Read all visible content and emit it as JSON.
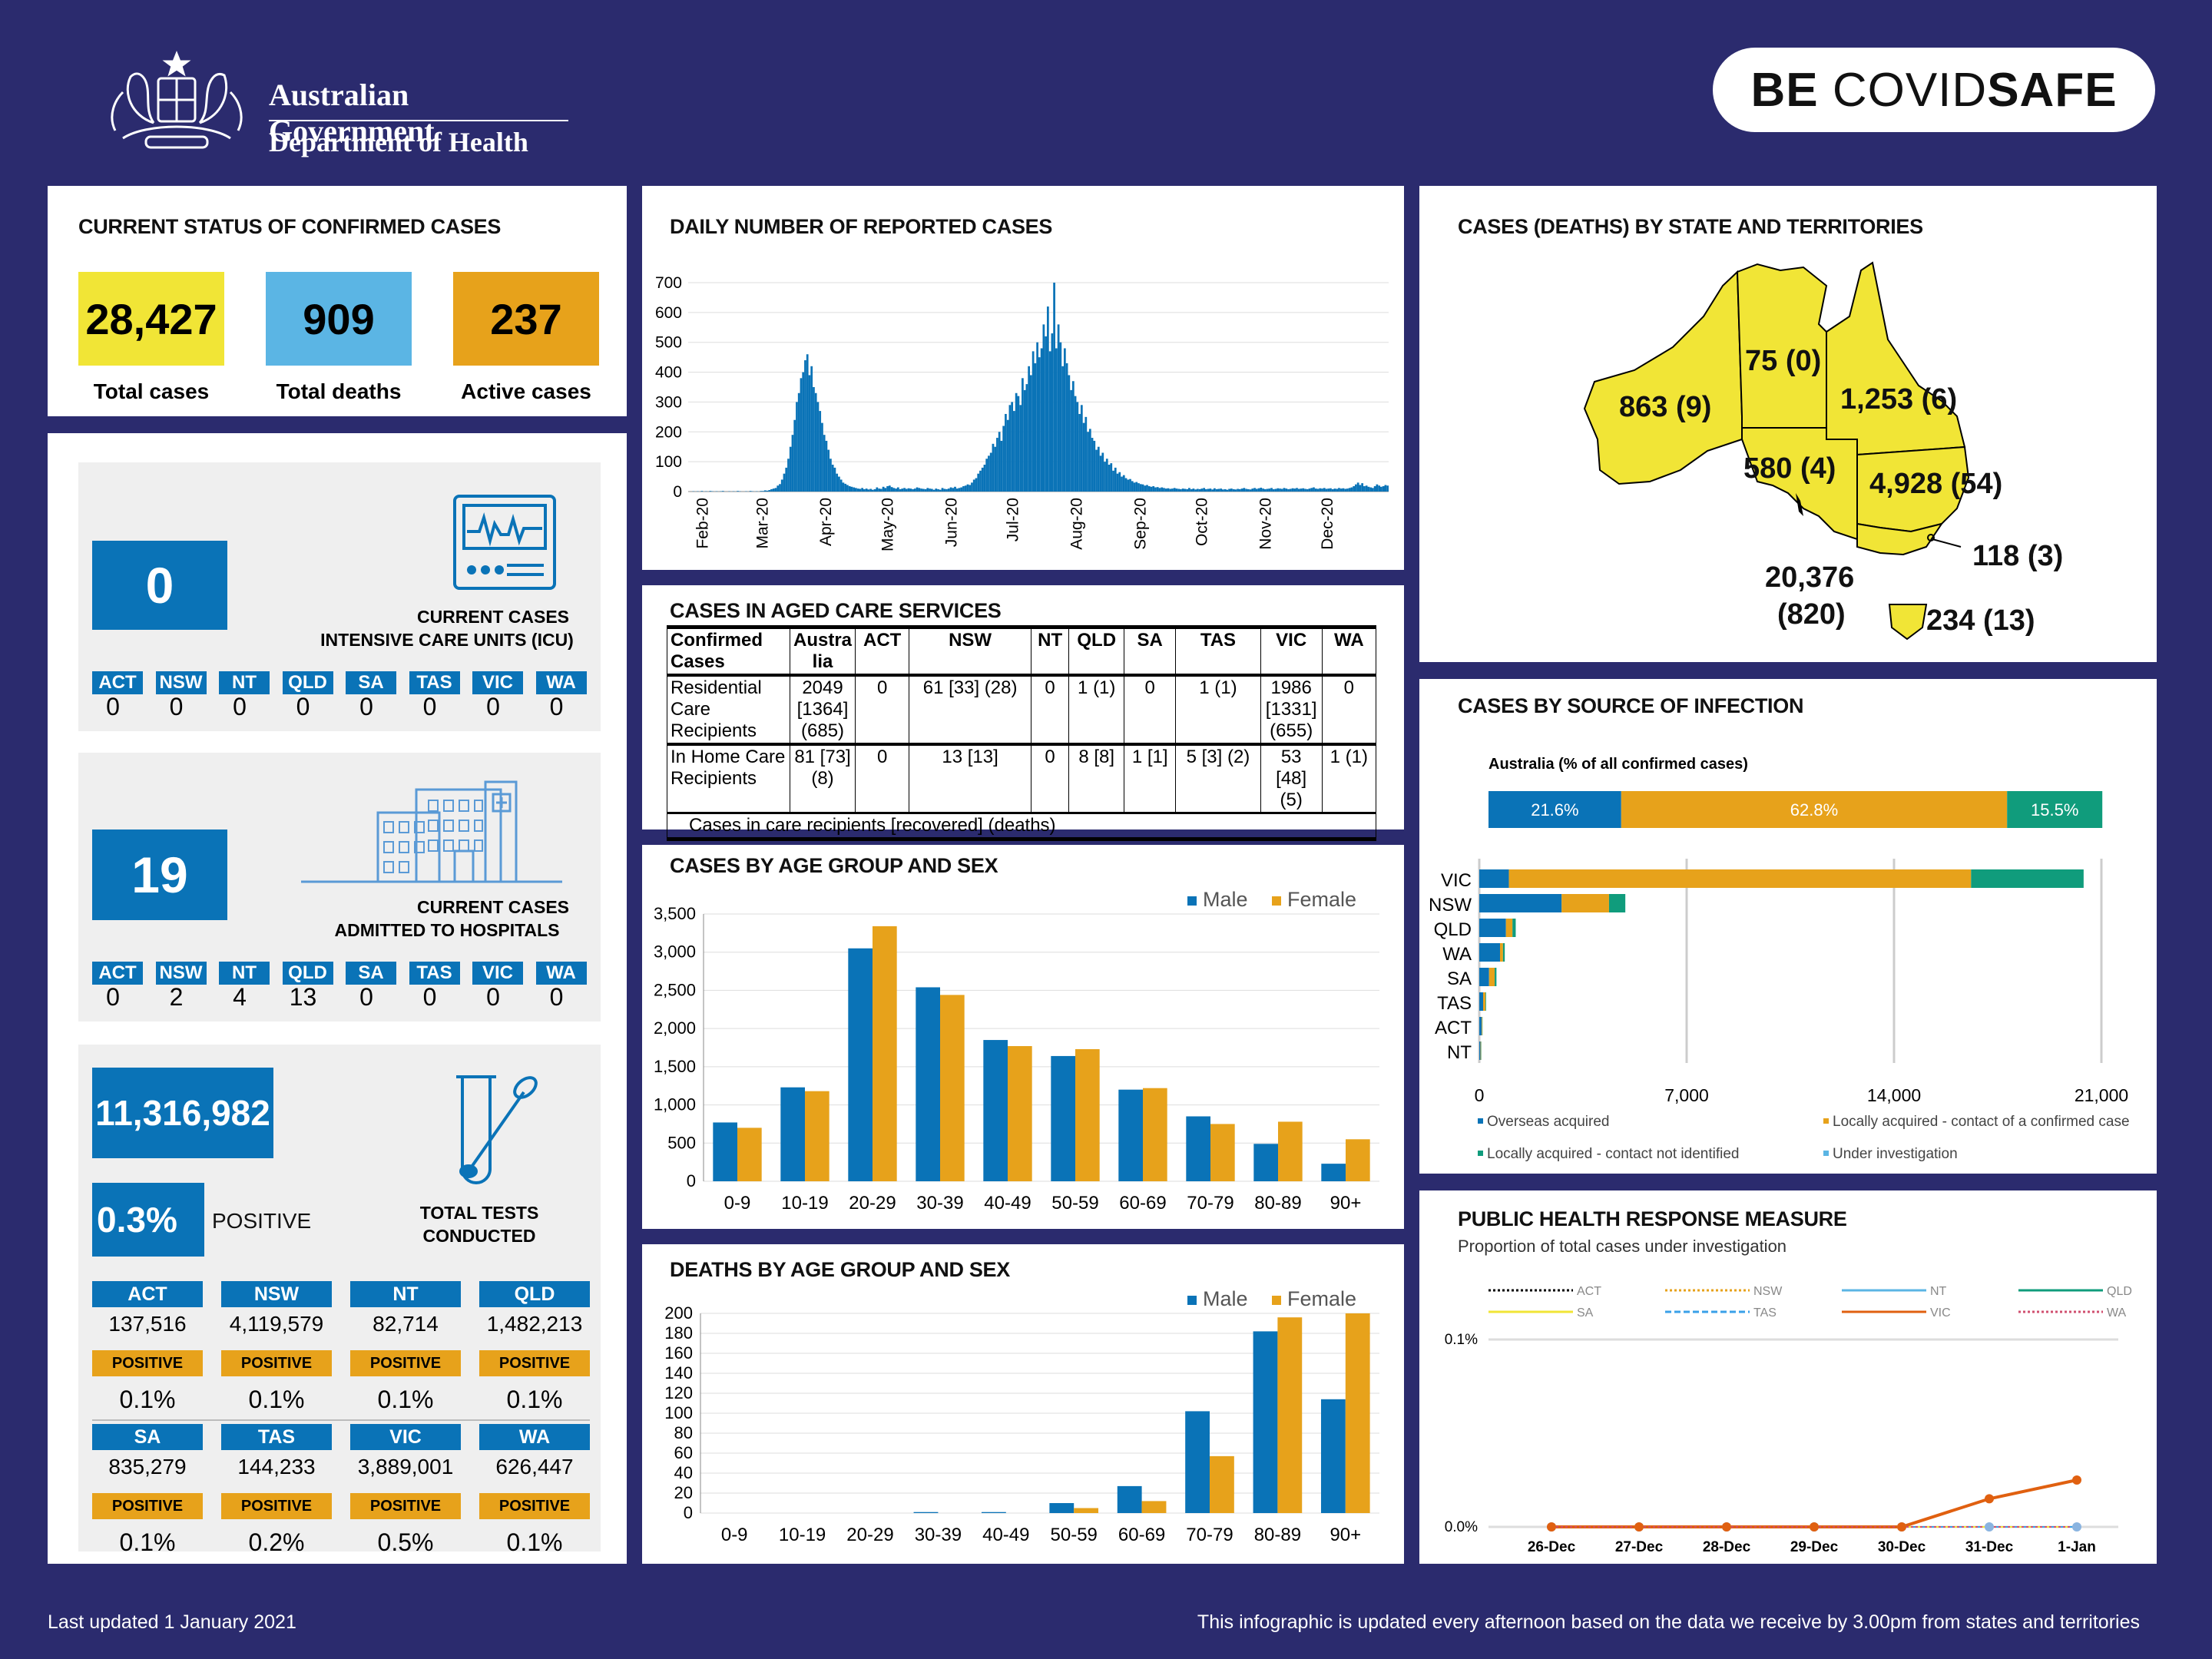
{
  "header": {
    "government": "Australian Government",
    "department": "Department of Health",
    "be_label": "BE",
    "covid_label": "COVID",
    "safe_label": "SAFE"
  },
  "status": {
    "title": "CURRENT STATUS OF CONFIRMED CASES",
    "total_cases": "28,427",
    "total_cases_label": "Total cases",
    "total_deaths": "909",
    "total_deaths_label": "Total deaths",
    "active_cases": "237",
    "active_cases_label": "Active cases",
    "colors": {
      "cases": "#f1e536",
      "deaths": "#5bb5e4",
      "active": "#e7a21b"
    }
  },
  "states": [
    "ACT",
    "NSW",
    "NT",
    "QLD",
    "SA",
    "TAS",
    "VIC",
    "WA"
  ],
  "icu": {
    "value": "0",
    "caption_line1": "CURRENT CASES",
    "caption_line2": "INTENSIVE CARE UNITS (ICU)",
    "by_state": [
      "0",
      "0",
      "0",
      "0",
      "0",
      "0",
      "0",
      "0"
    ]
  },
  "hospital": {
    "value": "19",
    "caption_line1": "CURRENT CASES",
    "caption_line2": "ADMITTED TO HOSPITALS",
    "by_state": [
      "0",
      "2",
      "4",
      "13",
      "0",
      "0",
      "0",
      "0"
    ]
  },
  "tests": {
    "total": "11,316,982",
    "positive_pct": "0.3%",
    "positive_label": "POSITIVE",
    "caption_line1": "TOTAL TESTS",
    "caption_line2": "CONDUCTED",
    "pos_tag": "POSITIVE",
    "row1": [
      {
        "state": "ACT",
        "tests": "137,516",
        "pct": "0.1%"
      },
      {
        "state": "NSW",
        "tests": "4,119,579",
        "pct": "0.1%"
      },
      {
        "state": "NT",
        "tests": "82,714",
        "pct": "0.1%"
      },
      {
        "state": "QLD",
        "tests": "1,482,213",
        "pct": "0.1%"
      }
    ],
    "row2": [
      {
        "state": "SA",
        "tests": "835,279",
        "pct": "0.1%"
      },
      {
        "state": "TAS",
        "tests": "144,233",
        "pct": "0.2%"
      },
      {
        "state": "VIC",
        "tests": "3,889,001",
        "pct": "0.5%"
      },
      {
        "state": "WA",
        "tests": "626,447",
        "pct": "0.1%"
      }
    ]
  },
  "aged_care": {
    "title": "CASES IN AGED CARE SERVICES",
    "headers": [
      "Confirmed Cases",
      "Austra lia",
      "ACT",
      "NSW",
      "NT",
      "QLD",
      "SA",
      "TAS",
      "VIC",
      "WA"
    ],
    "rows": [
      [
        "Residential Care Recipients",
        "2049 [1364] (685)",
        "0",
        "61 [33] (28)",
        "0",
        "1 (1)",
        "0",
        "1 (1)",
        "1986 [1331] (655)",
        "0"
      ],
      [
        "In Home Care Recipients",
        "81 [73] (8)",
        "0",
        "13 [13]",
        "0",
        "8 [8]",
        "1 [1]",
        "5 [3] (2)",
        "53 [48] (5)",
        "1 (1)"
      ]
    ],
    "footnote": "Cases in care recipients [recovered] (deaths)"
  },
  "state_map": {
    "title": "CASES (DEATHS) BY STATE AND TERRITORIES",
    "wa": "863 (9)",
    "nt": "75 (0)",
    "qld": "1,253 (6)",
    "sa": "580 (4)",
    "nsw": "4,928 (54)",
    "act": "118 (3)",
    "vic_line1": "20,376",
    "vic_line2": "(820)",
    "tas": "234 (13)"
  },
  "chart_data": [
    {
      "id": "daily",
      "type": "bar",
      "title": "DAILY NUMBER OF REPORTED CASES",
      "ylim": [
        0,
        700
      ],
      "yticks": [
        0,
        100,
        200,
        300,
        400,
        500,
        600,
        700
      ],
      "x_labels": [
        "Feb-20",
        "Mar-20",
        "Apr-20",
        "May-20",
        "Jun-20",
        "Jul-20",
        "Aug-20",
        "Sep-20",
        "Oct-20",
        "Nov-20",
        "Dec-20"
      ],
      "x_start": "2020-01-25",
      "x_end": "2020-12-31",
      "values": [
        0,
        0,
        1,
        0,
        1,
        0,
        2,
        0,
        1,
        0,
        2,
        1,
        0,
        1,
        0,
        1,
        2,
        0,
        0,
        1,
        0,
        1,
        0,
        2,
        1,
        0,
        0,
        1,
        0,
        2,
        1,
        0,
        1,
        0,
        2,
        2,
        4,
        3,
        5,
        8,
        10,
        12,
        20,
        25,
        40,
        60,
        80,
        110,
        150,
        190,
        240,
        300,
        330,
        380,
        400,
        440,
        460,
        390,
        420,
        350,
        330,
        300,
        270,
        230,
        190,
        170,
        140,
        110,
        90,
        80,
        60,
        50,
        40,
        30,
        26,
        22,
        18,
        16,
        14,
        12,
        10,
        9,
        12,
        8,
        10,
        7,
        9,
        6,
        8,
        14,
        10,
        9,
        16,
        12,
        18,
        20,
        15,
        12,
        10,
        14,
        8,
        10,
        12,
        9,
        11,
        10,
        8,
        10,
        14,
        12,
        10,
        9,
        8,
        12,
        10,
        9,
        6,
        10,
        8,
        6,
        12,
        9,
        8,
        10,
        14,
        12,
        16,
        10,
        12,
        14,
        18,
        20,
        24,
        22,
        30,
        40,
        45,
        60,
        70,
        80,
        90,
        110,
        120,
        130,
        160,
        150,
        180,
        200,
        170,
        220,
        260,
        240,
        290,
        300,
        270,
        330,
        320,
        290,
        380,
        340,
        360,
        420,
        390,
        470,
        430,
        500,
        450,
        480,
        560,
        520,
        620,
        470,
        530,
        700,
        480,
        560,
        500,
        420,
        480,
        430,
        390,
        340,
        370,
        320,
        300,
        260,
        290,
        230,
        250,
        200,
        210,
        180,
        170,
        140,
        150,
        120,
        130,
        100,
        110,
        90,
        95,
        70,
        80,
        60,
        65,
        50,
        55,
        45,
        40,
        42,
        35,
        30,
        32,
        28,
        25,
        24,
        20,
        22,
        18,
        16,
        18,
        14,
        15,
        12,
        14,
        12,
        10,
        11,
        9,
        10,
        12,
        10,
        9,
        8,
        10,
        9,
        8,
        12,
        8,
        10,
        7,
        9,
        8,
        10,
        12,
        8,
        9,
        10,
        7,
        11,
        8,
        9,
        10,
        7,
        8,
        6,
        9,
        10,
        8,
        7,
        9,
        8,
        10,
        12,
        9,
        8,
        7,
        10,
        12,
        9,
        11,
        13,
        10,
        8,
        9,
        10,
        12,
        8,
        9,
        11,
        10,
        9,
        12,
        10,
        8,
        9,
        11,
        10,
        12,
        9,
        10,
        11,
        9,
        8,
        10,
        12,
        14,
        10,
        9,
        11,
        10,
        12,
        9,
        10,
        11,
        8,
        10,
        9,
        12,
        10,
        11,
        9,
        10,
        12,
        14,
        18,
        24,
        30,
        22,
        28,
        18,
        20,
        16,
        14,
        12,
        18,
        24,
        20,
        16,
        18,
        22,
        20
      ]
    },
    {
      "id": "cases_age",
      "type": "bar",
      "title": "CASES BY AGE GROUP AND SEX",
      "categories": [
        "0-9",
        "10-19",
        "20-29",
        "30-39",
        "40-49",
        "50-59",
        "60-69",
        "70-79",
        "80-89",
        "90+"
      ],
      "ylim": [
        0,
        3500
      ],
      "yticks": [
        0,
        500,
        1000,
        1500,
        2000,
        2500,
        3000,
        3500
      ],
      "ytick_labels": [
        "0",
        "500",
        "1,000",
        "1,500",
        "2,000",
        "2,500",
        "3,000",
        "3,500"
      ],
      "series": [
        {
          "name": "Male",
          "color": "#0a73b7",
          "values": [
            770,
            1230,
            3050,
            2540,
            1850,
            1640,
            1200,
            850,
            490,
            230
          ]
        },
        {
          "name": "Female",
          "color": "#e7a21b",
          "values": [
            700,
            1180,
            3340,
            2440,
            1770,
            1730,
            1220,
            750,
            780,
            550
          ]
        }
      ]
    },
    {
      "id": "deaths_age",
      "type": "bar",
      "title": "DEATHS BY AGE GROUP AND SEX",
      "categories": [
        "0-9",
        "10-19",
        "20-29",
        "30-39",
        "40-49",
        "50-59",
        "60-69",
        "70-79",
        "80-89",
        "90+"
      ],
      "ylim": [
        0,
        200
      ],
      "yticks": [
        0,
        20,
        40,
        60,
        80,
        100,
        120,
        140,
        160,
        180,
        200
      ],
      "ytick_labels": [
        "0",
        "20",
        "40",
        "60",
        "80",
        "100",
        "120",
        "140",
        "160",
        "180",
        "200"
      ],
      "series": [
        {
          "name": "Male",
          "color": "#0a73b7",
          "values": [
            0,
            0,
            0,
            1,
            1,
            10,
            27,
            102,
            182,
            114
          ]
        },
        {
          "name": "Female",
          "color": "#e7a21b",
          "values": [
            0,
            0,
            0,
            0,
            0,
            5,
            12,
            57,
            196,
            200
          ]
        }
      ]
    },
    {
      "id": "source",
      "type": "bar",
      "title": "CASES BY SOURCE OF INFECTION",
      "subtitle": "Australia (% of all confirmed cases)",
      "australia_pct": [
        {
          "label": "21.6%",
          "value": 21.6,
          "color": "#0a73b7"
        },
        {
          "label": "62.8%",
          "value": 62.8,
          "color": "#e7a21b"
        },
        {
          "label": "15.5%",
          "value": 15.5,
          "color": "#109c7c"
        }
      ],
      "categories": [
        "VIC",
        "NSW",
        "QLD",
        "WA",
        "SA",
        "TAS",
        "ACT",
        "NT"
      ],
      "xlim": [
        0,
        21000
      ],
      "xticks": [
        0,
        7000,
        14000,
        21000
      ],
      "xtick_labels": [
        "0",
        "7,000",
        "14,000",
        "21,000"
      ],
      "series": [
        {
          "name": "Overseas acquired",
          "color": "#0a73b7",
          "values": [
            1000,
            2780,
            900,
            700,
            330,
            130,
            80,
            40
          ]
        },
        {
          "name": "Locally acquired - contact of a confirmed case",
          "color": "#e7a21b",
          "values": [
            15600,
            1600,
            220,
            100,
            190,
            80,
            20,
            20
          ]
        },
        {
          "name": "Locally acquired - contact not identified",
          "color": "#109c7c",
          "values": [
            3800,
            550,
            110,
            60,
            60,
            20,
            10,
            10
          ]
        },
        {
          "name": "Under investigation",
          "color": "#5bb5e4",
          "values": [
            0,
            0,
            0,
            0,
            0,
            0,
            0,
            0
          ]
        }
      ]
    },
    {
      "id": "response",
      "type": "line",
      "title": "PUBLIC HEALTH RESPONSE MEASURE",
      "subtitle": "Proportion of total cases under investigation",
      "x": [
        "26-Dec",
        "27-Dec",
        "28-Dec",
        "29-Dec",
        "30-Dec",
        "31-Dec",
        "1-Jan"
      ],
      "yticks": [
        0,
        0.1
      ],
      "ytick_labels": [
        "0.0%",
        "0.1%"
      ],
      "ylim": [
        0,
        0.1
      ],
      "series": [
        {
          "name": "ACT",
          "color": "#000000",
          "dash": "3,3",
          "values": [
            0,
            0,
            0,
            0,
            0,
            0,
            0
          ]
        },
        {
          "name": "NSW",
          "color": "#e7a21b",
          "dash": "3,3",
          "values": [
            0,
            0,
            0,
            0,
            0,
            0,
            0
          ]
        },
        {
          "name": "NT",
          "color": "#5bb5e4",
          "dash": "",
          "values": [
            0,
            0,
            0,
            0,
            0,
            0,
            0
          ]
        },
        {
          "name": "QLD",
          "color": "#109c7c",
          "dash": "",
          "values": [
            0,
            0,
            0,
            0,
            0,
            0,
            0
          ]
        },
        {
          "name": "SA",
          "color": "#f1e536",
          "dash": "",
          "values": [
            0,
            0,
            0,
            0,
            0,
            0,
            0
          ]
        },
        {
          "name": "TAS",
          "color": "#3aa0e8",
          "dash": "8,4",
          "values": [
            0,
            0,
            0,
            0,
            0,
            0,
            0
          ]
        },
        {
          "name": "VIC",
          "color": "#e06010",
          "dash": "",
          "values": [
            0,
            0,
            0,
            0,
            0,
            0.015,
            0.025
          ]
        },
        {
          "name": "WA",
          "color": "#d05070",
          "dash": "3,3",
          "values": [
            0,
            0,
            0,
            0,
            0,
            0,
            0
          ]
        }
      ]
    }
  ],
  "footer": {
    "updated": "Last updated 1 January 2021",
    "note": "This infographic is updated every afternoon based on the data we receive by 3.00pm from states and territories"
  }
}
